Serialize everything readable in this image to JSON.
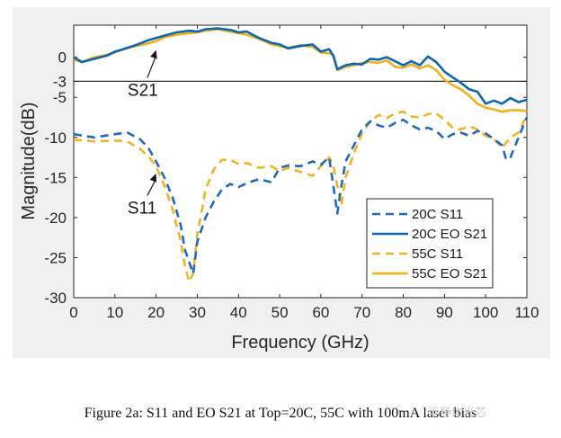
{
  "chart_data": {
    "type": "line",
    "xlabel": "Frequency (GHz)",
    "ylabel": "Magnitude(dB)",
    "xlim": [
      0,
      110
    ],
    "ylim": [
      -30,
      4
    ],
    "xticks": [
      0,
      10,
      20,
      30,
      40,
      50,
      60,
      70,
      80,
      90,
      100,
      110
    ],
    "yticks": [
      0,
      -3,
      -5,
      -10,
      -15,
      -20,
      -25,
      -30
    ],
    "grid": false,
    "reference_line": {
      "y": -3
    },
    "annotations": [
      {
        "text": "S21",
        "label_at": [
          17,
          -4.8
        ],
        "arrow_to": [
          20,
          0.9
        ]
      },
      {
        "text": "S11",
        "label_at": [
          17,
          -19.5
        ],
        "arrow_to": [
          20,
          -14.5
        ]
      }
    ],
    "legend_position": "lower-right",
    "series": [
      {
        "name": "20C S11",
        "color": "#1f6cb5",
        "dashed": true,
        "x": [
          0,
          5,
          10,
          13,
          16,
          18,
          20,
          22,
          24,
          26,
          27,
          28,
          29,
          30,
          32,
          34,
          36,
          38,
          40,
          42,
          45,
          48,
          50,
          52,
          55,
          58,
          60,
          62,
          63,
          64,
          65,
          66,
          68,
          70,
          72,
          74,
          76,
          78,
          80,
          82,
          84,
          86,
          88,
          90,
          92,
          94,
          96,
          98,
          100,
          102,
          104,
          105,
          106,
          108,
          110
        ],
        "y": [
          -9.6,
          -10.0,
          -9.6,
          -9.4,
          -10.2,
          -11.2,
          -13,
          -15,
          -17.5,
          -21,
          -24,
          -25.5,
          -27,
          -23,
          -20,
          -18,
          -16.5,
          -15.8,
          -16.2,
          -15.7,
          -15.2,
          -15.6,
          -13.8,
          -13.5,
          -13.6,
          -13.0,
          -13.4,
          -12.5,
          -16,
          -19.5,
          -16,
          -13,
          -11,
          -9,
          -8,
          -8.5,
          -8.8,
          -8.2,
          -7.8,
          -8.5,
          -9,
          -8.8,
          -9.2,
          -10.2,
          -9.6,
          -9.4,
          -9.8,
          -9.2,
          -9.5,
          -10.2,
          -11,
          -12.8,
          -12.5,
          -10,
          -7.5
        ]
      },
      {
        "name": "20C EO S21",
        "color": "#0f66b0",
        "dashed": false,
        "x": [
          0,
          2,
          5,
          8,
          10,
          12,
          15,
          18,
          20,
          22,
          25,
          28,
          30,
          32,
          35,
          38,
          40,
          42,
          45,
          48,
          50,
          52,
          55,
          58,
          60,
          62,
          63,
          64,
          66,
          68,
          70,
          72,
          74,
          76,
          78,
          80,
          82,
          84,
          86,
          88,
          90,
          92,
          94,
          96,
          98,
          100,
          102,
          104,
          106,
          108,
          110
        ],
        "y": [
          0,
          -0.6,
          -0.2,
          0.2,
          0.7,
          1.0,
          1.5,
          2.1,
          2.4,
          2.7,
          3.1,
          3.3,
          3.2,
          3.5,
          3.6,
          3.4,
          3.1,
          3.2,
          2.4,
          1.8,
          1.6,
          1.1,
          1.4,
          1.6,
          0.7,
          1.0,
          0.2,
          -1.5,
          -1.0,
          -0.8,
          -0.9,
          -0.2,
          -0.3,
          0,
          -0.5,
          -1.0,
          -0.5,
          -1.0,
          0.1,
          -0.6,
          -1.8,
          -2.5,
          -3.2,
          -4.0,
          -4.3,
          -5.8,
          -5.4,
          -5.8,
          -5.1,
          -5.6,
          -5.3
        ]
      },
      {
        "name": "55C S11",
        "color": "#f0b429",
        "dashed": true,
        "x": [
          0,
          5,
          10,
          13,
          16,
          18,
          20,
          22,
          24,
          26,
          27,
          28,
          29,
          30,
          31,
          32,
          34,
          36,
          38,
          40,
          42,
          45,
          48,
          50,
          52,
          55,
          58,
          60,
          62,
          63,
          64,
          65,
          66,
          68,
          70,
          72,
          74,
          76,
          78,
          80,
          82,
          84,
          86,
          88,
          90,
          92,
          94,
          96,
          98,
          100,
          102,
          104,
          106,
          108,
          110
        ],
        "y": [
          -10.3,
          -10.5,
          -10.4,
          -10.5,
          -11.4,
          -12.3,
          -13.6,
          -16,
          -19,
          -23,
          -26,
          -28,
          -27,
          -22,
          -19.5,
          -16.5,
          -14,
          -12.8,
          -12.8,
          -13.3,
          -13.2,
          -13.8,
          -13.6,
          -14.2,
          -13.8,
          -14.3,
          -14.8,
          -13.6,
          -12.5,
          -13.5,
          -16,
          -18.5,
          -15,
          -12,
          -9.5,
          -8,
          -7.2,
          -7.6,
          -7.0,
          -6.8,
          -7.4,
          -7.5,
          -7.1,
          -7.0,
          -7.8,
          -8.8,
          -9.0,
          -8.6,
          -9.0,
          -9.8,
          -10.2,
          -11.3,
          -10.0,
          -9.4,
          -7.2
        ]
      },
      {
        "name": "55C EO S21",
        "color": "#edb120",
        "dashed": false,
        "x": [
          0,
          2,
          5,
          8,
          10,
          12,
          15,
          18,
          20,
          22,
          25,
          28,
          30,
          32,
          35,
          38,
          40,
          42,
          45,
          48,
          50,
          52,
          55,
          58,
          60,
          62,
          63,
          64,
          66,
          68,
          70,
          72,
          74,
          76,
          78,
          80,
          82,
          84,
          86,
          88,
          90,
          92,
          94,
          96,
          98,
          100,
          102,
          104,
          106,
          108,
          110
        ],
        "y": [
          -0.3,
          -0.6,
          0,
          0.3,
          0.6,
          1.0,
          1.4,
          1.7,
          2.0,
          2.5,
          2.8,
          3.0,
          3.1,
          3.3,
          3.5,
          3.2,
          3.0,
          2.8,
          2.3,
          1.6,
          1.4,
          1.2,
          1.5,
          1.3,
          0.6,
          0.5,
          0.3,
          -1.6,
          -1.2,
          -1.0,
          -0.7,
          -0.6,
          -0.7,
          -0.4,
          -1.2,
          -1.3,
          -0.9,
          -1.4,
          -1.0,
          -1.6,
          -2.8,
          -3.5,
          -4.0,
          -4.8,
          -5.8,
          -6.3,
          -6.5,
          -6.8,
          -6.6,
          -6.6,
          -6.7
        ]
      }
    ]
  },
  "caption": "Figure 2a: S11 and EO S21 at Top=20C, 55C with 100mA laser bias",
  "watermark": "半导体光芯"
}
